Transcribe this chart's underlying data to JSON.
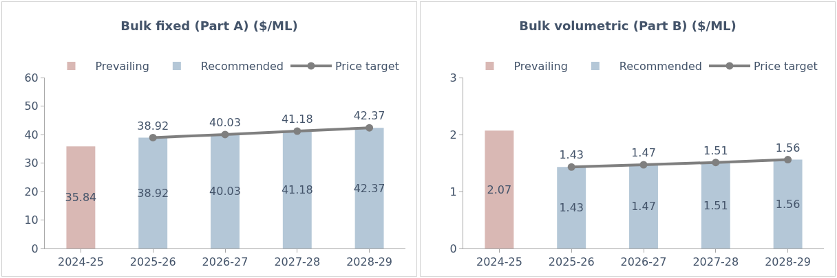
{
  "chart_data": [
    {
      "type": "bar",
      "title": "Bulk fixed (Part A) ($/ML)",
      "categories": [
        "2024-25",
        "2025-26",
        "2026-27",
        "2027-28",
        "2028-29"
      ],
      "ylim": [
        0,
        60
      ],
      "yticks": [
        0,
        10,
        20,
        30,
        40,
        50,
        60
      ],
      "grid": false,
      "legend": "top",
      "data_labels": true,
      "marker": "circle",
      "series": [
        {
          "name": "Prevailing",
          "color": "#d9b8b4",
          "values": [
            35.84,
            null,
            null,
            null,
            null
          ]
        },
        {
          "name": "Recommended",
          "color": "#b4c7d7",
          "values": [
            null,
            38.92,
            40.03,
            41.18,
            42.37
          ]
        },
        {
          "name": "Price target",
          "type": "line",
          "color": "#7f7f7f",
          "values": [
            null,
            38.92,
            40.03,
            41.18,
            42.37
          ]
        }
      ]
    },
    {
      "type": "bar",
      "title": "Bulk volumetric (Part B) ($/ML)",
      "categories": [
        "2024-25",
        "2025-26",
        "2026-27",
        "2027-28",
        "2028-29"
      ],
      "ylim": [
        0,
        3
      ],
      "yticks": [
        0,
        1,
        2,
        3
      ],
      "grid": false,
      "legend": "top",
      "data_labels": true,
      "marker": "circle",
      "series": [
        {
          "name": "Prevailing",
          "color": "#d9b8b4",
          "values": [
            2.07,
            null,
            null,
            null,
            null
          ]
        },
        {
          "name": "Recommended",
          "color": "#b4c7d7",
          "values": [
            null,
            1.43,
            1.47,
            1.51,
            1.56
          ]
        },
        {
          "name": "Price target",
          "type": "line",
          "color": "#7f7f7f",
          "values": [
            null,
            1.43,
            1.47,
            1.51,
            1.56
          ]
        }
      ]
    }
  ]
}
